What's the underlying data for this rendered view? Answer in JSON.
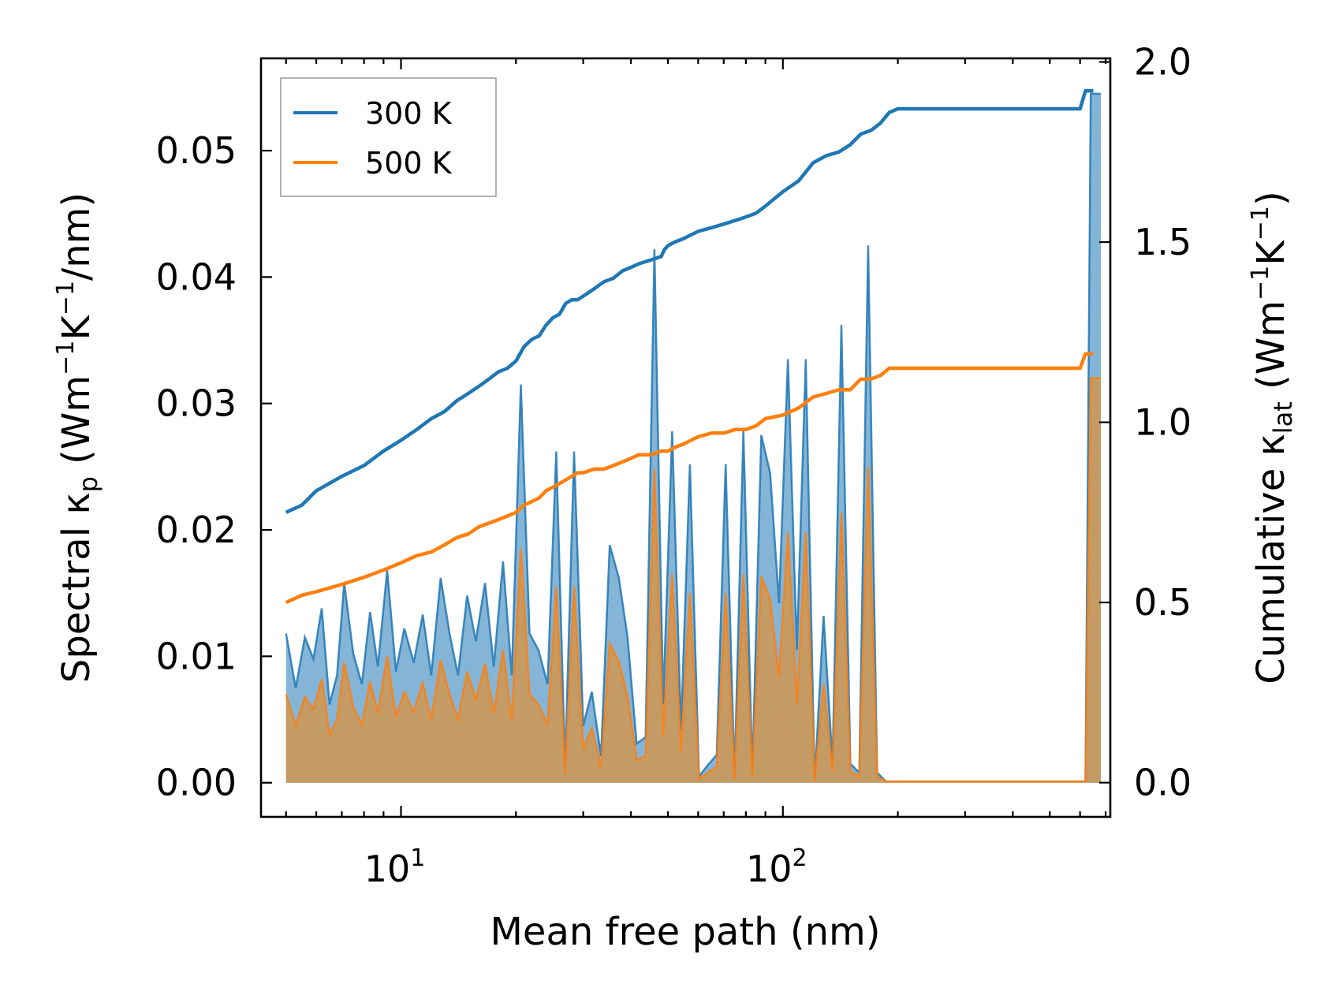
{
  "chart_data": {
    "type": "line",
    "xscale": "log",
    "xlim": [
      4.3,
      720
    ],
    "xlabel": "Mean free path (nm)",
    "x_ticks": [
      {
        "value": 10,
        "label_base": "10",
        "label_exp": "1"
      },
      {
        "value": 100,
        "label_base": "10",
        "label_exp": "2"
      }
    ],
    "y_left": {
      "label_parts": {
        "prefix": "Spectral κ",
        "sub": "p",
        "unit_a": " (Wm",
        "sup_a": "−1",
        "unit_b": "K",
        "sup_b": "−1",
        "unit_c": "/nm)"
      },
      "ylim": [
        -0.0027,
        0.0573
      ],
      "ticks": [
        0.0,
        0.01,
        0.02,
        0.03,
        0.04,
        0.05
      ],
      "tick_labels": [
        "0.00",
        "0.01",
        "0.02",
        "0.03",
        "0.04",
        "0.05"
      ]
    },
    "y_right": {
      "label_parts": {
        "prefix": "Cumulative κ",
        "sub": "lat",
        "unit_a": " (Wm",
        "sup_a": "−1",
        "unit_b": "K",
        "sup_b": "−1",
        "unit_c": ")"
      },
      "ylim": [
        -0.095,
        2.01
      ],
      "ticks": [
        0.0,
        0.5,
        1.0,
        1.5,
        2.0
      ],
      "tick_labels": [
        "0.0",
        "0.5",
        "1.0",
        "1.5",
        "2.0"
      ]
    },
    "legend": {
      "placement": "top-left",
      "entries": [
        "300 K",
        "500 K"
      ]
    },
    "series": [
      {
        "name": "300 K",
        "color": "#1f77b4",
        "cumulative": {
          "x": [
            5,
            5.5,
            6,
            7,
            8,
            9,
            10,
            11,
            12,
            13,
            14,
            15,
            16,
            17,
            18,
            19,
            20,
            21,
            22,
            23,
            24,
            25,
            26,
            27,
            28,
            29,
            30,
            32,
            34,
            36,
            38,
            40,
            42,
            45,
            48,
            49,
            50,
            52,
            55,
            60,
            65,
            70,
            75,
            80,
            85,
            90,
            100,
            110,
            120,
            130,
            140,
            150,
            160,
            170,
            180,
            190,
            200,
            600,
            620,
            650
          ],
          "y": [
            0.75,
            0.77,
            0.81,
            0.85,
            0.88,
            0.92,
            0.95,
            0.98,
            1.01,
            1.03,
            1.06,
            1.08,
            1.1,
            1.12,
            1.14,
            1.15,
            1.17,
            1.21,
            1.23,
            1.24,
            1.27,
            1.29,
            1.3,
            1.33,
            1.34,
            1.34,
            1.35,
            1.37,
            1.39,
            1.4,
            1.42,
            1.43,
            1.44,
            1.45,
            1.46,
            1.48,
            1.49,
            1.5,
            1.51,
            1.53,
            1.54,
            1.55,
            1.56,
            1.57,
            1.58,
            1.6,
            1.64,
            1.67,
            1.72,
            1.74,
            1.75,
            1.77,
            1.8,
            1.81,
            1.83,
            1.86,
            1.87,
            1.87,
            1.92,
            1.92
          ]
        },
        "spectral": {
          "x": [
            5,
            5.3,
            5.6,
            5.9,
            6.2,
            6.5,
            6.8,
            7.1,
            7.5,
            7.9,
            8.3,
            8.7,
            9.2,
            9.7,
            10.2,
            10.8,
            11.4,
            12.0,
            12.7,
            13.4,
            14.1,
            14.9,
            15.7,
            16.6,
            17.5,
            18.5,
            19.5,
            20.6,
            21.7,
            22.9,
            24.2,
            25.5,
            26.9,
            28.4,
            30.0,
            31.6,
            33.4,
            35.2,
            37.2,
            39.2,
            41.4,
            43.7,
            46.1,
            48.6,
            51.3,
            54.1,
            57.1,
            60.3,
            63.6,
            67.1,
            70.8,
            74.7,
            78.8,
            83.2,
            87.8,
            92.6,
            97.7,
            103.1,
            108.8,
            114.8,
            121.1,
            127.8,
            134.9,
            142.3,
            150.2,
            158.5,
            167.2,
            176.5,
            186.2,
            196.5,
            600,
            620,
            640,
            660,
            680
          ],
          "y": [
            0.0118,
            0.0075,
            0.0115,
            0.0098,
            0.0138,
            0.0062,
            0.0085,
            0.0158,
            0.0102,
            0.0078,
            0.0135,
            0.0092,
            0.0168,
            0.0088,
            0.0122,
            0.0095,
            0.0133,
            0.0085,
            0.0162,
            0.0118,
            0.0085,
            0.0148,
            0.0112,
            0.0158,
            0.0092,
            0.0175,
            0.0085,
            0.0315,
            0.0118,
            0.0105,
            0.0078,
            0.0262,
            0.0012,
            0.0262,
            0.0045,
            0.0072,
            0.0021,
            0.0188,
            0.0162,
            0.0115,
            0.0031,
            0.0036,
            0.0422,
            0.0062,
            0.0278,
            0.0042,
            0.0252,
            0.0005,
            0.0014,
            0.0022,
            0.0252,
            0.0005,
            0.0278,
            0.0008,
            0.0275,
            0.0245,
            0.0142,
            0.0335,
            0.0105,
            0.0335,
            0.0001,
            0.0132,
            0.0015,
            0.0362,
            0.0015,
            0.0008,
            0.0425,
            0.0008,
            0.0001,
            0.0001,
            0.0001,
            0.0001,
            0.0545,
            0.0545,
            0.0545
          ]
        }
      },
      {
        "name": "500 K",
        "color": "#ff7f0e",
        "cumulative": {
          "x": [
            5,
            5.5,
            6,
            7,
            8,
            9,
            10,
            11,
            12,
            13,
            14,
            15,
            16,
            17,
            18,
            19,
            20,
            21,
            22,
            23,
            24,
            25,
            26,
            27,
            28,
            29,
            30,
            32,
            34,
            36,
            38,
            40,
            42,
            45,
            48,
            49,
            50,
            52,
            55,
            60,
            65,
            70,
            75,
            80,
            85,
            90,
            100,
            110,
            120,
            130,
            140,
            150,
            160,
            170,
            180,
            190,
            200,
            600,
            620,
            650
          ],
          "y": [
            0.5,
            0.52,
            0.53,
            0.55,
            0.57,
            0.59,
            0.61,
            0.63,
            0.64,
            0.66,
            0.68,
            0.69,
            0.71,
            0.72,
            0.73,
            0.74,
            0.75,
            0.77,
            0.78,
            0.79,
            0.81,
            0.82,
            0.83,
            0.84,
            0.85,
            0.86,
            0.86,
            0.87,
            0.87,
            0.88,
            0.89,
            0.9,
            0.91,
            0.91,
            0.92,
            0.92,
            0.92,
            0.93,
            0.94,
            0.96,
            0.97,
            0.97,
            0.98,
            0.98,
            0.99,
            1.01,
            1.02,
            1.04,
            1.07,
            1.08,
            1.09,
            1.09,
            1.12,
            1.12,
            1.13,
            1.15,
            1.15,
            1.15,
            1.19,
            1.19
          ]
        },
        "spectral": {
          "x": [
            5,
            5.3,
            5.6,
            5.9,
            6.2,
            6.5,
            6.8,
            7.1,
            7.5,
            7.9,
            8.3,
            8.7,
            9.2,
            9.7,
            10.2,
            10.8,
            11.4,
            12.0,
            12.7,
            13.4,
            14.1,
            14.9,
            15.7,
            16.6,
            17.5,
            18.5,
            19.5,
            20.6,
            21.7,
            22.9,
            24.2,
            25.5,
            26.9,
            28.4,
            30.0,
            31.6,
            33.4,
            35.2,
            37.2,
            39.2,
            41.4,
            43.7,
            46.1,
            48.6,
            51.3,
            54.1,
            57.1,
            60.3,
            63.6,
            67.1,
            70.8,
            74.7,
            78.8,
            83.2,
            87.8,
            92.6,
            97.7,
            103.1,
            108.8,
            114.8,
            121.1,
            127.8,
            134.9,
            142.3,
            150.2,
            158.5,
            167.2,
            176.5,
            186.2,
            196.5,
            600,
            620,
            640,
            660,
            680
          ],
          "y": [
            0.007,
            0.0045,
            0.0068,
            0.0058,
            0.0082,
            0.0038,
            0.005,
            0.0095,
            0.006,
            0.0046,
            0.008,
            0.0055,
            0.01,
            0.0052,
            0.0072,
            0.0056,
            0.0079,
            0.005,
            0.0097,
            0.007,
            0.005,
            0.0088,
            0.0066,
            0.0094,
            0.0055,
            0.0105,
            0.005,
            0.0185,
            0.007,
            0.0062,
            0.0046,
            0.0155,
            0.0007,
            0.0155,
            0.0027,
            0.0043,
            0.0012,
            0.011,
            0.0096,
            0.0068,
            0.0018,
            0.0021,
            0.0248,
            0.0037,
            0.0165,
            0.0025,
            0.015,
            0.0003,
            0.0008,
            0.0013,
            0.015,
            0.0003,
            0.0165,
            0.0005,
            0.0163,
            0.0145,
            0.0084,
            0.0198,
            0.0062,
            0.0198,
            0.0001,
            0.0078,
            0.0009,
            0.0214,
            0.0009,
            0.0005,
            0.025,
            0.0005,
            0.0001,
            0.0001,
            0.0001,
            0.0001,
            0.032,
            0.032,
            0.032
          ]
        }
      }
    ]
  }
}
